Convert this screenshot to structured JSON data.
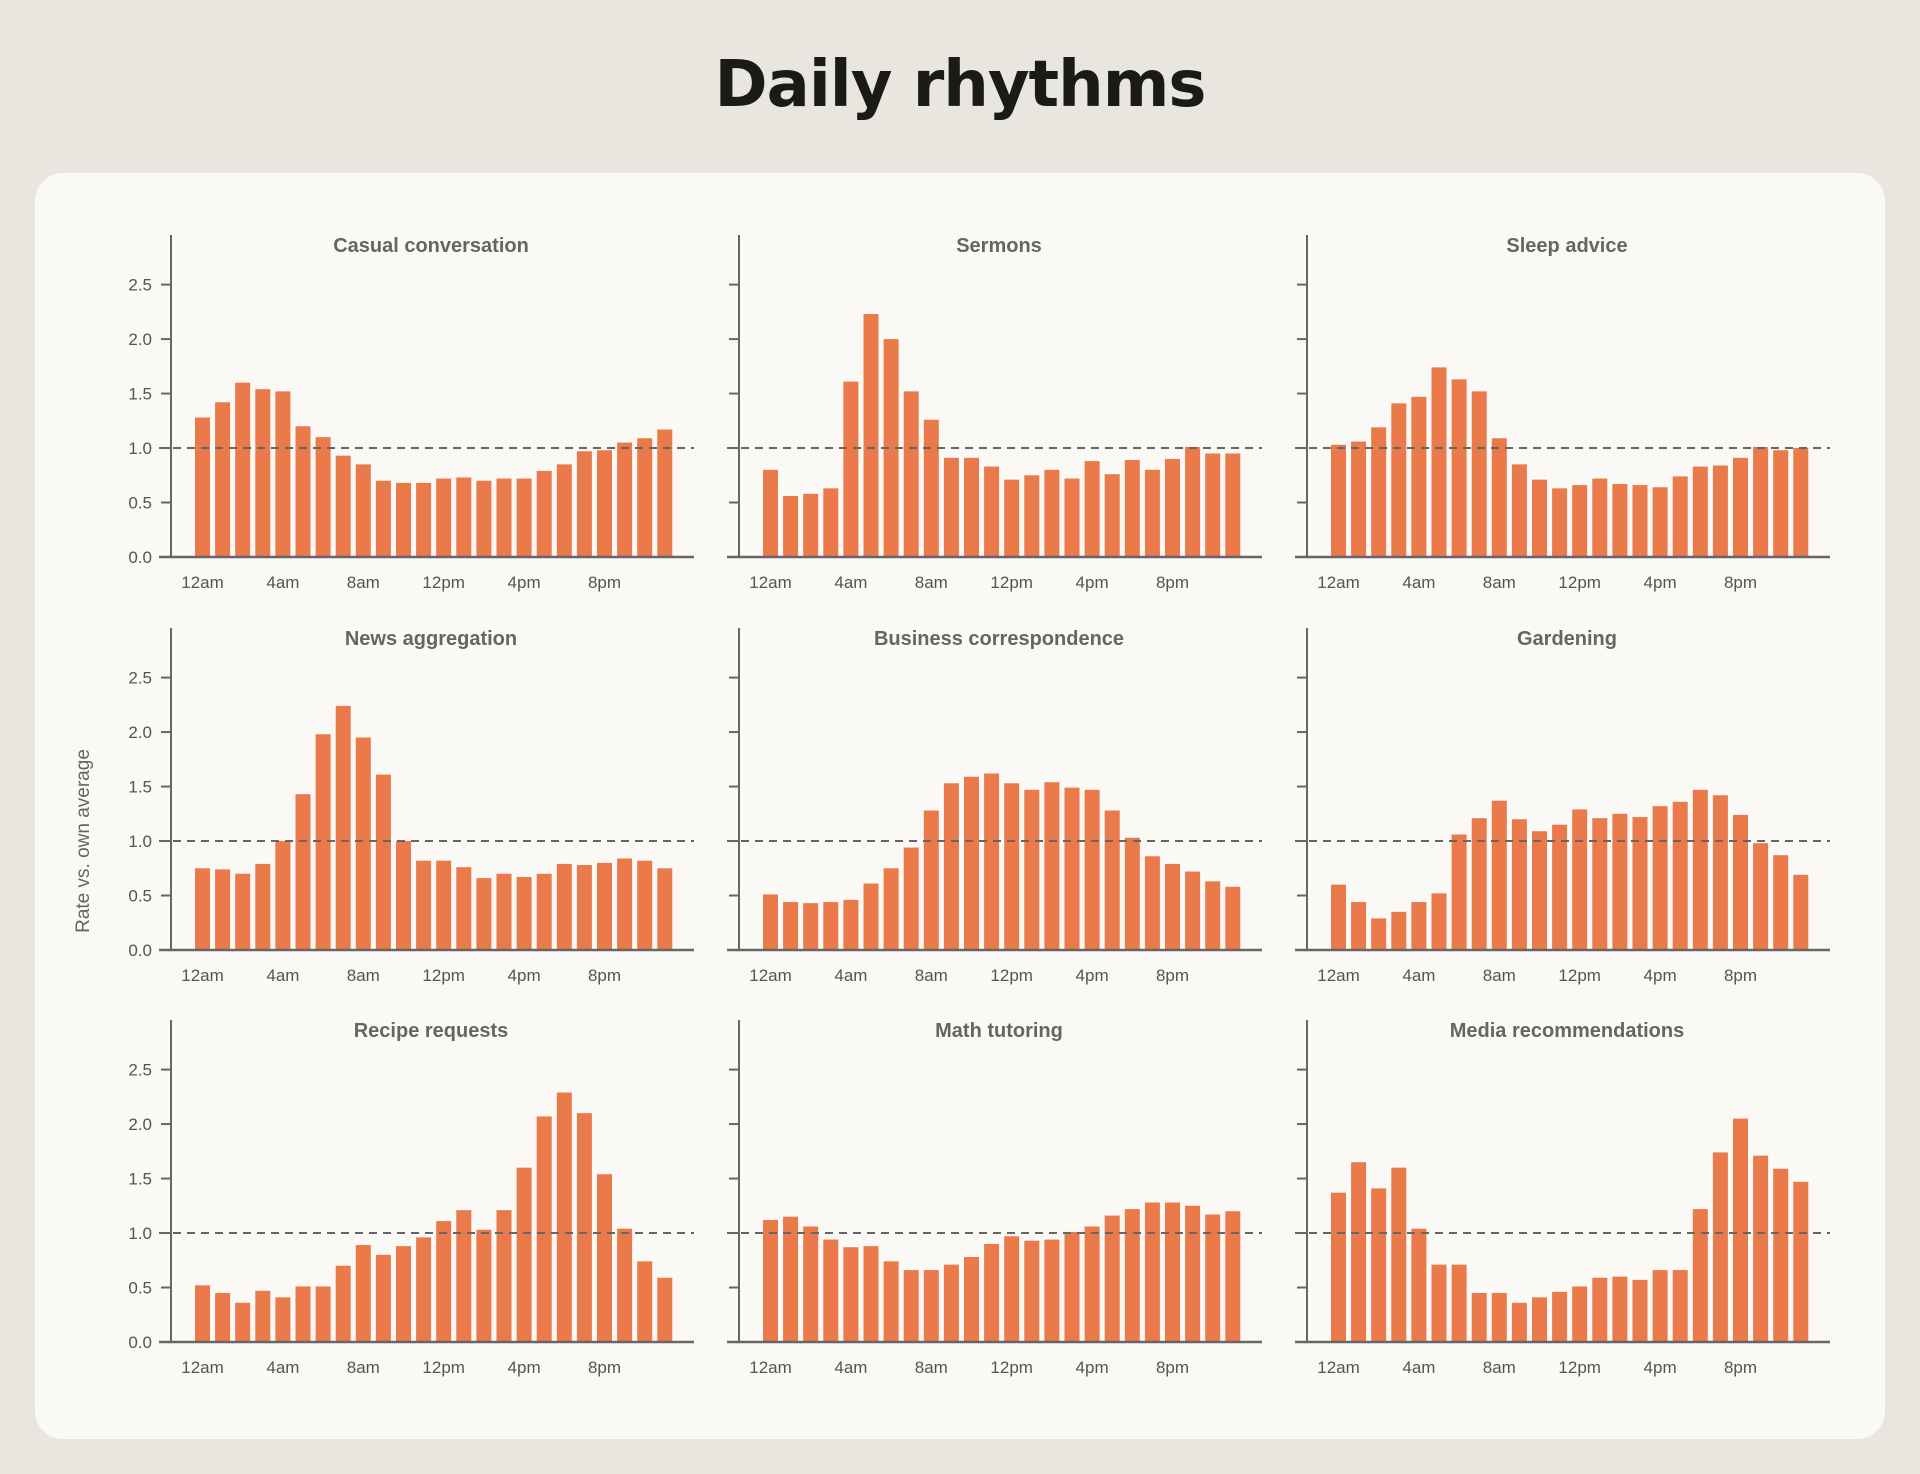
{
  "title": "Daily rhythms",
  "ylabel": "Rate vs. own average",
  "colors": {
    "bar": "#ea7a4a",
    "axis": "#666666",
    "reference": "#666666"
  },
  "chart_data": [
    {
      "type": "bar",
      "title": "Casual conversation",
      "x_ticks": [
        "12am",
        "4am",
        "8am",
        "12pm",
        "4pm",
        "8pm"
      ],
      "values": [
        1.28,
        1.42,
        1.6,
        1.54,
        1.52,
        1.2,
        1.1,
        0.93,
        0.85,
        0.7,
        0.68,
        0.68,
        0.72,
        0.73,
        0.7,
        0.72,
        0.72,
        0.79,
        0.85,
        0.97,
        0.98,
        1.05,
        1.09,
        1.17
      ],
      "ylim": [
        0,
        2.9
      ],
      "yticks": [
        "0.0",
        "0.5",
        "1.0",
        "1.5",
        "2.0",
        "2.5"
      ],
      "reference_line": 1.0
    },
    {
      "type": "bar",
      "title": "Sermons",
      "x_ticks": [
        "12am",
        "4am",
        "8am",
        "12pm",
        "4pm",
        "8pm"
      ],
      "values": [
        0.8,
        0.56,
        0.58,
        0.63,
        1.61,
        2.23,
        2.0,
        1.52,
        1.26,
        0.91,
        0.91,
        0.83,
        0.71,
        0.75,
        0.8,
        0.72,
        0.88,
        0.76,
        0.89,
        0.8,
        0.9,
        1.01,
        0.95,
        0.95
      ],
      "ylim": [
        0,
        2.9
      ],
      "reference_line": 1.0
    },
    {
      "type": "bar",
      "title": "Sleep advice",
      "x_ticks": [
        "12am",
        "4am",
        "8am",
        "12pm",
        "4pm",
        "8pm"
      ],
      "values": [
        1.03,
        1.06,
        1.19,
        1.41,
        1.47,
        1.74,
        1.63,
        1.52,
        1.09,
        0.85,
        0.71,
        0.63,
        0.66,
        0.72,
        0.67,
        0.66,
        0.64,
        0.74,
        0.83,
        0.84,
        0.91,
        1.01,
        0.98,
        1.0
      ],
      "ylim": [
        0,
        2.9
      ],
      "reference_line": 1.0
    },
    {
      "type": "bar",
      "title": "News aggregation",
      "x_ticks": [
        "12am",
        "4am",
        "8am",
        "12pm",
        "4pm",
        "8pm"
      ],
      "values": [
        0.75,
        0.74,
        0.7,
        0.79,
        1.0,
        1.43,
        1.98,
        2.24,
        1.95,
        1.61,
        1.0,
        0.82,
        0.82,
        0.76,
        0.66,
        0.7,
        0.67,
        0.7,
        0.79,
        0.78,
        0.8,
        0.84,
        0.82,
        0.75
      ],
      "ylim": [
        0,
        2.9
      ],
      "yticks": [
        "0.0",
        "0.5",
        "1.0",
        "1.5",
        "2.0",
        "2.5"
      ],
      "reference_line": 1.0
    },
    {
      "type": "bar",
      "title": "Business correspondence",
      "x_ticks": [
        "12am",
        "4am",
        "8am",
        "12pm",
        "4pm",
        "8pm"
      ],
      "values": [
        0.51,
        0.44,
        0.43,
        0.44,
        0.46,
        0.61,
        0.75,
        0.94,
        1.28,
        1.53,
        1.59,
        1.62,
        1.53,
        1.47,
        1.54,
        1.49,
        1.47,
        1.28,
        1.03,
        0.86,
        0.79,
        0.72,
        0.63,
        0.58
      ],
      "ylim": [
        0,
        2.9
      ],
      "reference_line": 1.0
    },
    {
      "type": "bar",
      "title": "Gardening",
      "x_ticks": [
        "12am",
        "4am",
        "8am",
        "12pm",
        "4pm",
        "8pm"
      ],
      "values": [
        0.6,
        0.44,
        0.29,
        0.35,
        0.44,
        0.52,
        1.06,
        1.21,
        1.37,
        1.2,
        1.09,
        1.15,
        1.29,
        1.21,
        1.25,
        1.22,
        1.32,
        1.36,
        1.47,
        1.42,
        1.24,
        0.98,
        0.87,
        0.69
      ],
      "ylim": [
        0,
        2.9
      ],
      "reference_line": 1.0
    },
    {
      "type": "bar",
      "title": "Recipe requests",
      "x_ticks": [
        "12am",
        "4am",
        "8am",
        "12pm",
        "4pm",
        "8pm"
      ],
      "values": [
        0.52,
        0.45,
        0.36,
        0.47,
        0.41,
        0.51,
        0.51,
        0.7,
        0.89,
        0.8,
        0.88,
        0.96,
        1.11,
        1.21,
        1.03,
        1.21,
        1.6,
        2.07,
        2.29,
        2.1,
        1.54,
        1.04,
        0.74,
        0.59
      ],
      "ylim": [
        0,
        2.9
      ],
      "yticks": [
        "0.0",
        "0.5",
        "1.0",
        "1.5",
        "2.0",
        "2.5"
      ],
      "reference_line": 1.0
    },
    {
      "type": "bar",
      "title": "Math tutoring",
      "x_ticks": [
        "12am",
        "4am",
        "8am",
        "12pm",
        "4pm",
        "8pm"
      ],
      "values": [
        1.12,
        1.15,
        1.06,
        0.94,
        0.87,
        0.88,
        0.74,
        0.66,
        0.66,
        0.71,
        0.78,
        0.9,
        0.97,
        0.93,
        0.94,
        1.01,
        1.06,
        1.16,
        1.22,
        1.28,
        1.28,
        1.25,
        1.17,
        1.2
      ],
      "ylim": [
        0,
        2.9
      ],
      "reference_line": 1.0
    },
    {
      "type": "bar",
      "title": "Media recommendations",
      "x_ticks": [
        "12am",
        "4am",
        "8am",
        "12pm",
        "4pm",
        "8pm"
      ],
      "values": [
        1.37,
        1.65,
        1.41,
        1.6,
        1.04,
        0.71,
        0.71,
        0.45,
        0.45,
        0.36,
        0.41,
        0.46,
        0.51,
        0.59,
        0.6,
        0.57,
        0.66,
        0.66,
        1.22,
        1.74,
        2.05,
        1.71,
        1.59,
        1.47
      ],
      "ylim": [
        0,
        2.9
      ],
      "reference_line": 1.0
    }
  ]
}
